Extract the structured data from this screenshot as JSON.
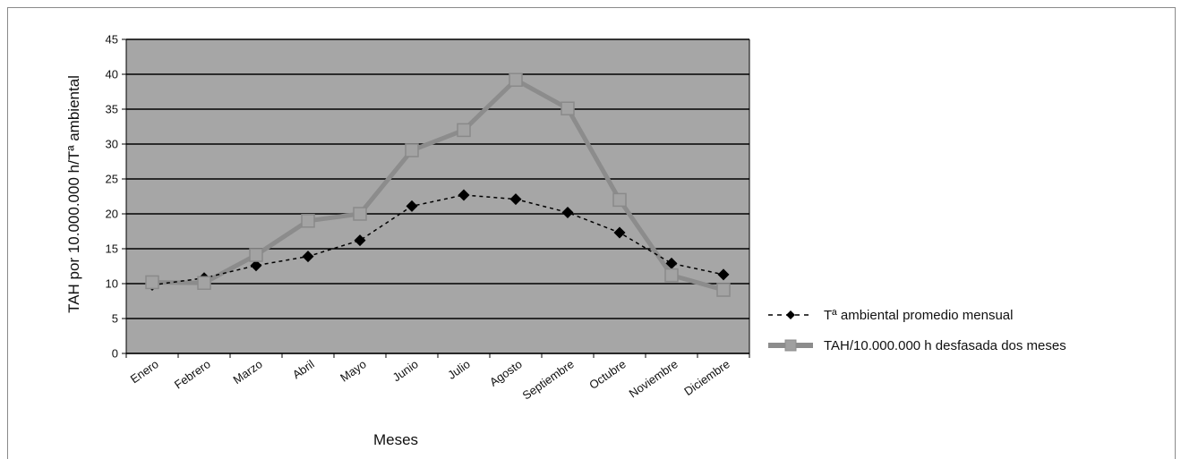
{
  "chart_data": {
    "type": "line",
    "title": "",
    "xlabel": "Meses",
    "ylabel": "TAH por 10.000.000 h/Tª ambiental",
    "ylim": [
      0,
      45
    ],
    "yticks": [
      0,
      5,
      10,
      15,
      20,
      25,
      30,
      35,
      40,
      45
    ],
    "grid": true,
    "legend_position": "right",
    "plot_background": "#a6a6a6",
    "categories": [
      "Enero",
      "Febrero",
      "Marzo",
      "Abril",
      "Mayo",
      "Junio",
      "Julio",
      "Agosto",
      "Septiembre",
      "Octubre",
      "Noviembre",
      "Diciembre"
    ],
    "series": [
      {
        "name": "Tª ambiental promedio mensual",
        "style": "dashed-diamond",
        "color": "#000000",
        "values": [
          9.8,
          10.8,
          12.6,
          13.9,
          16.2,
          21.1,
          22.7,
          22.1,
          20.2,
          17.3,
          12.9,
          11.3
        ]
      },
      {
        "name": "TAH/10.000.000 h desfasada dos meses",
        "style": "solid-square",
        "color": "#8c8c8c",
        "values": [
          10.2,
          10.1,
          14.1,
          19.0,
          20.0,
          29.1,
          32.0,
          39.2,
          35.1,
          22.0,
          11.2,
          9.1
        ]
      }
    ]
  }
}
